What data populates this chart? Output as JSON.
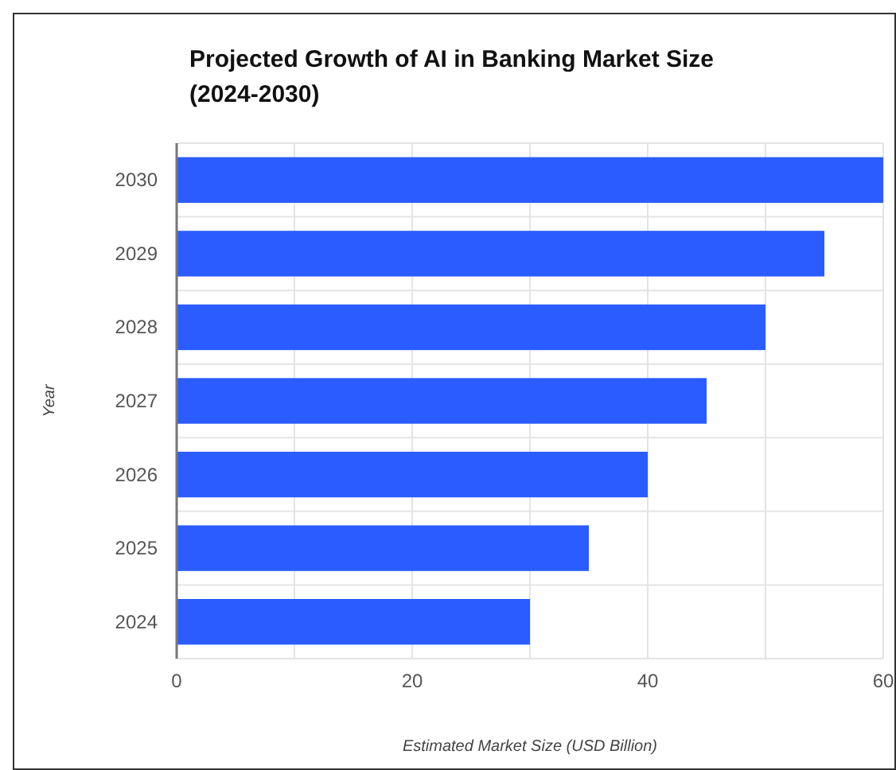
{
  "chart_data": {
    "type": "bar",
    "orientation": "horizontal",
    "title": "Projected Growth of AI in Banking Market Size (2024-2030)",
    "xlabel": "Estimated Market Size (USD Billion)",
    "ylabel": "Year",
    "categories": [
      "2030",
      "2029",
      "2028",
      "2027",
      "2026",
      "2025",
      "2024"
    ],
    "values": [
      60,
      55,
      50,
      45,
      40,
      35,
      30
    ],
    "color": "#2b5cff",
    "xlim": [
      0,
      60
    ],
    "xticks": [
      0,
      {
        "value": 10,
        "label": null
      },
      20,
      {
        "value": 30,
        "label": null
      },
      40,
      {
        "value": 50,
        "label": null
      },
      60
    ],
    "grid": true
  }
}
